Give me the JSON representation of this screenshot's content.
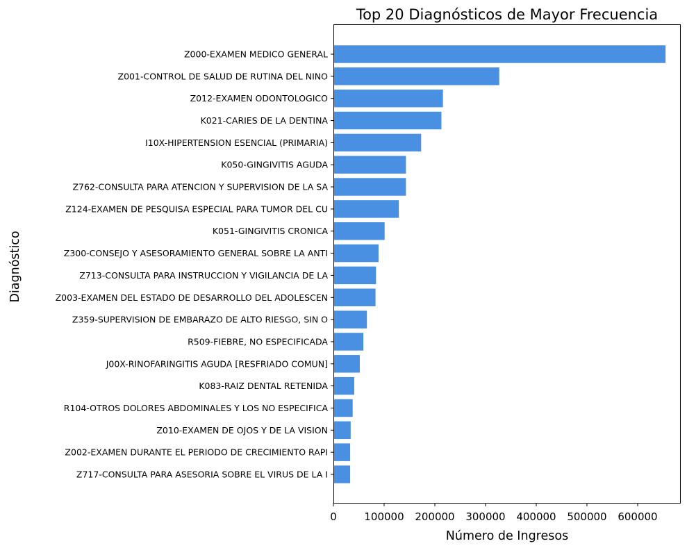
{
  "chart_data": {
    "type": "bar",
    "orientation": "horizontal",
    "title": "Top 20 Diagnósticos de Mayor Frecuencia",
    "xlabel": "Número de Ingresos",
    "ylabel": "Diagnóstico",
    "xlim": [
      0,
      685000
    ],
    "x_ticks": [
      0,
      100000,
      200000,
      300000,
      400000,
      500000,
      600000
    ],
    "x_tick_labels": [
      "0",
      "100000",
      "200000",
      "300000",
      "400000",
      "500000",
      "600000"
    ],
    "grid": false,
    "legend": "none",
    "bar_color": "#4a90e2",
    "categories": [
      "Z000-EXAMEN MEDICO GENERAL",
      "Z001-CONTROL DE SALUD DE RUTINA DEL NINO",
      "Z012-EXAMEN ODONTOLOGICO",
      "K021-CARIES DE LA DENTINA",
      "I10X-HIPERTENSION ESENCIAL (PRIMARIA)",
      "K050-GINGIVITIS AGUDA",
      "Z762-CONSULTA PARA ATENCION Y SUPERVISION DE LA SA",
      "Z124-EXAMEN DE PESQUISA ESPECIAL PARA TUMOR DEL CU",
      "K051-GINGIVITIS CRONICA",
      "Z300-CONSEJO Y ASESORAMIENTO GENERAL SOBRE LA ANTI",
      "Z713-CONSULTA PARA INSTRUCCION Y VIGILANCIA DE LA ",
      "Z003-EXAMEN DEL ESTADO DE DESARROLLO DEL ADOLESCEN",
      "Z359-SUPERVISION DE EMBARAZO DE ALTO RIESGO, SIN O",
      "R509-FIEBRE, NO ESPECIFICADA",
      "J00X-RINOFARINGITIS AGUDA [RESFRIADO COMUN]",
      "K083-RAIZ DENTAL RETENIDA",
      "R104-OTROS DOLORES ABDOMINALES Y LOS NO ESPECIFICA",
      "Z010-EXAMEN DE OJOS Y DE LA VISION",
      "Z002-EXAMEN DURANTE EL PERIODO DE CRECIMIENTO RAPI",
      "Z717-CONSULTA PARA ASESORIA SOBRE EL VIRUS DE LA I"
    ],
    "values": [
      655000,
      327000,
      216000,
      213000,
      173000,
      143000,
      143000,
      129000,
      101000,
      89000,
      84000,
      83000,
      66000,
      59000,
      52000,
      41000,
      38000,
      34000,
      33000,
      33000
    ]
  }
}
